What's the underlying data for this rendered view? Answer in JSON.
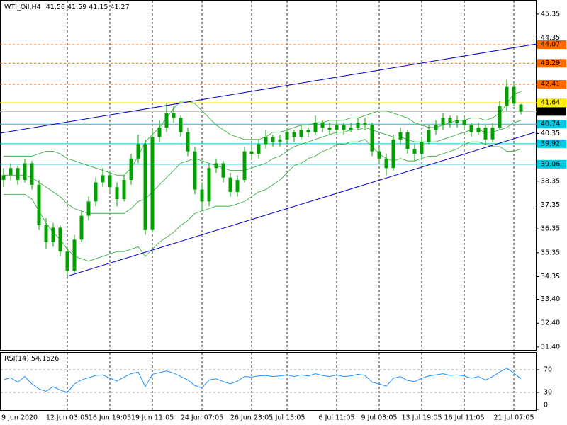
{
  "chart_data": [
    {
      "type": "candlestick",
      "title": "WTI_Oil,H4",
      "categories": [
        "9 Jun 2020",
        null,
        null,
        null,
        null,
        null,
        null,
        null,
        null,
        "12 Jun 03:05",
        null,
        null,
        null,
        null,
        null,
        "16 Jun 19:05",
        null,
        null,
        null,
        null,
        null,
        "19 Jun 11:05",
        null,
        null,
        null,
        null,
        null,
        null,
        "24 Jun 07:05",
        null,
        null,
        null,
        null,
        null,
        null,
        "26 Jun 23:05",
        null,
        null,
        null,
        null,
        "1 Jul 15:05",
        null,
        null,
        null,
        null,
        null,
        null,
        "6 Jul 11:05",
        null,
        null,
        null,
        null,
        null,
        "9 Jul 03:05",
        null,
        null,
        null,
        null,
        null,
        "13 Jul 19:05",
        null,
        null,
        null,
        null,
        null,
        "16 Jul 11:05",
        null,
        null,
        null,
        null,
        null,
        null,
        "21 Jul 07:05",
        null
      ],
      "open": [
        38.4,
        38.6,
        38.9,
        38.4,
        39.1,
        38.2,
        36.5,
        35.8,
        36.4,
        35.4,
        34.6,
        35.9,
        36.9,
        37.5,
        38.3,
        38.6,
        38.1,
        37.6,
        38.4,
        39.3,
        39.9,
        36.3,
        40.2,
        40.6,
        41.2,
        41.0,
        40.4,
        39.6,
        38.0,
        37.5,
        38.9,
        39.1,
        38.5,
        37.9,
        38.4,
        39.6,
        39.5,
        39.9,
        40.2,
        40.0,
        40.1,
        40.4,
        40.2,
        40.5,
        40.4,
        40.8,
        40.6,
        40.5,
        40.7,
        40.5,
        40.6,
        40.8,
        40.7,
        39.6,
        39.3,
        38.9,
        40.1,
        40.4,
        39.7,
        39.5,
        40.0,
        40.5,
        40.7,
        41.0,
        40.8,
        40.9,
        40.7,
        40.4,
        40.6,
        40.1,
        40.6,
        41.5,
        42.3,
        41.56
      ],
      "high": [
        38.9,
        39.1,
        39.0,
        39.3,
        39.2,
        38.4,
        36.8,
        36.6,
        36.5,
        35.6,
        36.1,
        37.1,
        37.7,
        38.5,
        38.9,
        38.8,
        38.3,
        38.6,
        39.5,
        40.3,
        40.1,
        40.5,
        40.9,
        41.6,
        41.5,
        41.1,
        40.6,
        39.8,
        38.3,
        39.1,
        39.3,
        39.2,
        38.7,
        38.6,
        39.8,
        39.9,
        40.1,
        40.5,
        40.3,
        40.3,
        40.6,
        40.5,
        40.7,
        40.6,
        41.1,
        40.9,
        40.8,
        40.9,
        40.8,
        40.8,
        41.0,
        41.0,
        40.8,
        39.8,
        39.5,
        40.3,
        40.6,
        40.5,
        39.9,
        40.2,
        40.7,
        40.9,
        41.2,
        41.1,
        41.1,
        41.0,
        40.8,
        40.8,
        40.7,
        40.8,
        41.7,
        42.6,
        42.5,
        41.59
      ],
      "low": [
        38.1,
        38.4,
        38.2,
        38.3,
        38.0,
        36.3,
        35.5,
        35.6,
        35.2,
        34.4,
        34.5,
        35.8,
        36.7,
        37.3,
        38.1,
        37.9,
        37.3,
        37.5,
        38.2,
        39.1,
        36.1,
        36.2,
        40.0,
        40.4,
        40.8,
        40.2,
        39.4,
        37.8,
        37.1,
        37.3,
        38.7,
        38.3,
        37.7,
        37.7,
        38.3,
        39.3,
        39.3,
        39.7,
        39.8,
        39.8,
        39.9,
        40.0,
        40.1,
        40.2,
        40.3,
        40.4,
        40.3,
        40.3,
        40.3,
        40.4,
        40.5,
        40.5,
        39.4,
        39.1,
        38.6,
        38.8,
        39.9,
        39.5,
        39.2,
        39.3,
        39.9,
        40.3,
        40.5,
        40.6,
        40.6,
        40.5,
        40.2,
        40.3,
        39.9,
        40.0,
        40.5,
        41.3,
        41.5,
        41.15
      ],
      "close": [
        38.6,
        38.9,
        38.4,
        39.1,
        38.2,
        36.5,
        35.8,
        36.4,
        35.4,
        34.6,
        35.9,
        36.9,
        37.5,
        38.3,
        38.6,
        38.1,
        37.6,
        38.4,
        39.3,
        39.9,
        36.3,
        40.2,
        40.6,
        41.2,
        41.0,
        40.4,
        39.6,
        38.0,
        37.5,
        38.9,
        39.1,
        38.5,
        37.9,
        38.4,
        39.6,
        39.5,
        39.9,
        40.2,
        40.0,
        40.1,
        40.4,
        40.2,
        40.5,
        40.4,
        40.8,
        40.6,
        40.5,
        40.7,
        40.5,
        40.6,
        40.8,
        40.7,
        39.6,
        39.3,
        38.9,
        40.1,
        40.4,
        39.7,
        39.5,
        40.0,
        40.5,
        40.7,
        41.0,
        40.8,
        40.9,
        40.7,
        40.4,
        40.6,
        40.1,
        40.6,
        41.5,
        42.3,
        41.6,
        41.27
      ],
      "color": "#00a000",
      "bands": [
        {
          "color": "#3cb043",
          "values": [
            39.4,
            39.4,
            39.4,
            39.4,
            39.4,
            39.5,
            39.6,
            39.6,
            39.5,
            39.3,
            39.2,
            39.1,
            39.0,
            38.9,
            38.8,
            38.7,
            38.6,
            38.6,
            38.9,
            39.4,
            40.0,
            40.3,
            40.6,
            41.0,
            41.4,
            41.7,
            41.7,
            41.6,
            41.3,
            41.0,
            40.7,
            40.5,
            40.3,
            40.2,
            40.1,
            40.1,
            40.1,
            40.2,
            40.4,
            40.4,
            40.5,
            40.6,
            40.7,
            40.7,
            40.8,
            40.8,
            40.9,
            40.9,
            40.9,
            41.0,
            41.0,
            41.1,
            41.2,
            41.3,
            41.3,
            41.2,
            41.1,
            41.0,
            40.8,
            40.7,
            40.6,
            40.6,
            40.7,
            40.8,
            40.9,
            40.9,
            41.0,
            41.0,
            40.9,
            41.0,
            41.2,
            41.6,
            42.0,
            42.1
          ]
        },
        {
          "color": "#3cb043",
          "values": [
            38.6,
            38.6,
            38.6,
            38.6,
            38.5,
            38.3,
            38.1,
            37.9,
            37.7,
            37.4,
            37.2,
            37.1,
            37.0,
            37.0,
            37.0,
            37.0,
            37.0,
            37.0,
            37.2,
            37.5,
            37.6,
            37.9,
            38.2,
            38.5,
            38.8,
            39.1,
            39.2,
            39.3,
            39.2,
            39.1,
            39.0,
            38.9,
            38.8,
            38.8,
            38.8,
            38.9,
            39.0,
            39.1,
            39.3,
            39.4,
            39.6,
            39.8,
            39.9,
            40.0,
            40.1,
            40.2,
            40.3,
            40.4,
            40.4,
            40.5,
            40.5,
            40.6,
            40.5,
            40.4,
            40.3,
            40.2,
            40.2,
            40.1,
            40.0,
            40.0,
            40.0,
            40.0,
            40.1,
            40.2,
            40.3,
            40.4,
            40.5,
            40.5,
            40.4,
            40.4,
            40.5,
            40.6,
            40.8,
            40.9
          ]
        },
        {
          "color": "#3cb043",
          "values": [
            37.8,
            37.8,
            37.8,
            37.8,
            37.6,
            37.1,
            36.6,
            36.2,
            35.9,
            35.5,
            35.2,
            35.1,
            35.0,
            35.1,
            35.2,
            35.3,
            35.4,
            35.4,
            35.5,
            35.6,
            35.2,
            35.5,
            35.8,
            36.0,
            36.2,
            36.5,
            36.7,
            37.0,
            37.1,
            37.2,
            37.3,
            37.3,
            37.3,
            37.4,
            37.5,
            37.7,
            37.9,
            38.0,
            38.2,
            38.4,
            38.7,
            39.0,
            39.1,
            39.3,
            39.4,
            39.6,
            39.7,
            39.9,
            39.9,
            40.0,
            40.0,
            40.1,
            39.8,
            39.5,
            39.3,
            39.2,
            39.3,
            39.2,
            39.2,
            39.3,
            39.4,
            39.4,
            39.5,
            39.6,
            39.7,
            39.9,
            40.0,
            40.0,
            39.9,
            39.8,
            39.8,
            39.6,
            39.6,
            39.7
          ]
        }
      ],
      "ylim": [
        31.25,
        45.94
      ],
      "yticks": [
        45.35,
        44.35,
        40.35,
        38.35,
        37.35,
        36.35,
        35.35,
        34.35,
        {
          "value": 33.4,
          "label": "33.40"
        },
        {
          "value": 32.4,
          "label": "32.40"
        },
        {
          "value": 31.4,
          "label": "31.40"
        }
      ],
      "levels": [
        {
          "value": 44.07,
          "color": "#ff6a00",
          "style": "dashed"
        },
        {
          "value": 43.29,
          "color": "#ff6a00",
          "style": "dashed"
        },
        {
          "value": 42.41,
          "color": "#ff6a00",
          "style": "dashed"
        },
        {
          "value": 41.64,
          "color": "#ffee00",
          "style": "solid"
        },
        {
          "value": 40.74,
          "color": "#00c8e0",
          "style": "solid"
        },
        {
          "value": 39.92,
          "color": "#00c8e0",
          "style": "solid"
        },
        {
          "value": 39.06,
          "color": "#00c8e0",
          "style": "solid"
        }
      ]
    },
    {
      "type": "line",
      "title": "RSI(14)",
      "values": [
        52,
        56,
        48,
        58,
        45,
        36,
        32,
        40,
        34,
        30,
        45,
        52,
        56,
        60,
        61,
        55,
        50,
        57,
        63,
        66,
        40,
        62,
        65,
        68,
        64,
        58,
        52,
        42,
        38,
        52,
        54,
        49,
        45,
        50,
        58,
        57,
        59,
        60,
        58,
        59,
        61,
        58,
        61,
        59,
        63,
        60,
        58,
        61,
        58,
        59,
        62,
        60,
        48,
        45,
        41,
        55,
        58,
        51,
        49,
        55,
        59,
        61,
        63,
        60,
        61,
        59,
        55,
        58,
        52,
        58,
        66,
        73,
        64,
        54.1626
      ],
      "color": "#1e90ff",
      "ylim": [
        0,
        100
      ],
      "yticks": [
        70,
        30,
        0
      ]
    }
  ]
}
